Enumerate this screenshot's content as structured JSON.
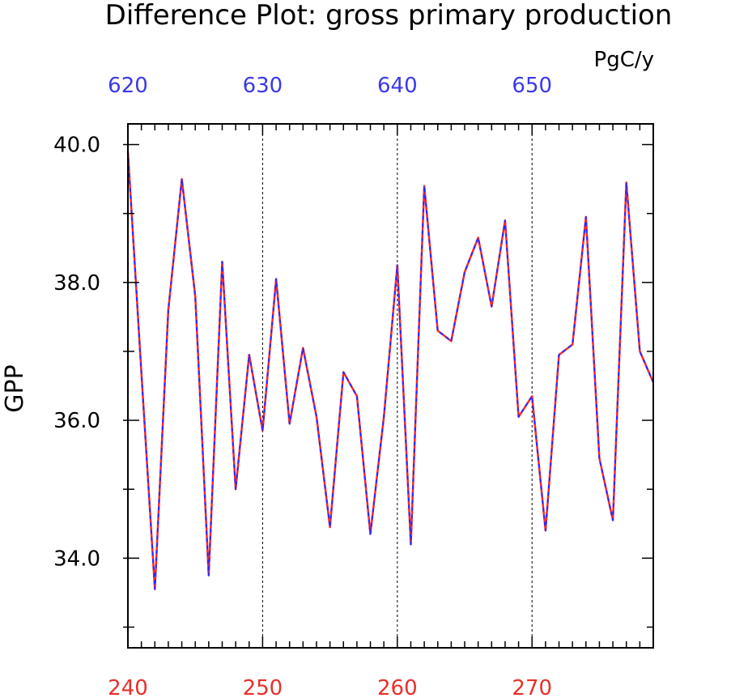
{
  "chart_data": {
    "type": "line",
    "title": "Difference Plot: gross primary production",
    "units": "PgC/y",
    "ylabel": "GPP",
    "ylim": [
      32.7,
      40.3
    ],
    "yticks": [
      {
        "value": 34,
        "label": "34.0"
      },
      {
        "value": 36,
        "label": "36.0"
      },
      {
        "value": 38,
        "label": "38.0"
      },
      {
        "value": 40,
        "label": "40.0"
      }
    ],
    "xlim_bottom": [
      240,
      279
    ],
    "xticks_bottom": [
      {
        "value": 240,
        "label": "240"
      },
      {
        "value": 250,
        "label": "250"
      },
      {
        "value": 260,
        "label": "260"
      },
      {
        "value": 270,
        "label": "270"
      }
    ],
    "xticks_top": [
      {
        "value": 620,
        "label": "620"
      },
      {
        "value": 630,
        "label": "630"
      },
      {
        "value": 640,
        "label": "640"
      },
      {
        "value": 650,
        "label": "650"
      }
    ],
    "x_top_offset": 380,
    "grid_x_dashed": [
      250,
      260,
      270
    ],
    "colors": {
      "bottom_axis": "#e8302a",
      "top_axis": "#3a3ae8",
      "series_a": "#ff2a2a",
      "series_b": "#2a2aff"
    },
    "x": [
      240,
      241,
      242,
      243,
      244,
      245,
      246,
      247,
      248,
      249,
      250,
      251,
      252,
      253,
      254,
      255,
      256,
      257,
      258,
      259,
      260,
      261,
      262,
      263,
      264,
      265,
      266,
      267,
      268,
      269,
      270,
      271,
      272,
      273,
      274,
      275,
      276,
      277,
      278,
      279
    ],
    "series": [
      {
        "values": [
          39.9,
          36.7,
          33.55,
          37.6,
          39.5,
          37.8,
          33.75,
          38.3,
          35.0,
          36.95,
          35.85,
          38.05,
          35.95,
          37.05,
          36.05,
          34.45,
          36.7,
          36.35,
          34.35,
          36.05,
          38.25,
          34.2,
          39.4,
          37.3,
          37.15,
          38.15,
          38.65,
          37.65,
          38.9,
          36.05,
          36.35,
          34.4,
          36.95,
          37.1,
          38.95,
          35.45,
          34.55,
          39.45,
          37.0,
          36.55
        ]
      }
    ]
  }
}
